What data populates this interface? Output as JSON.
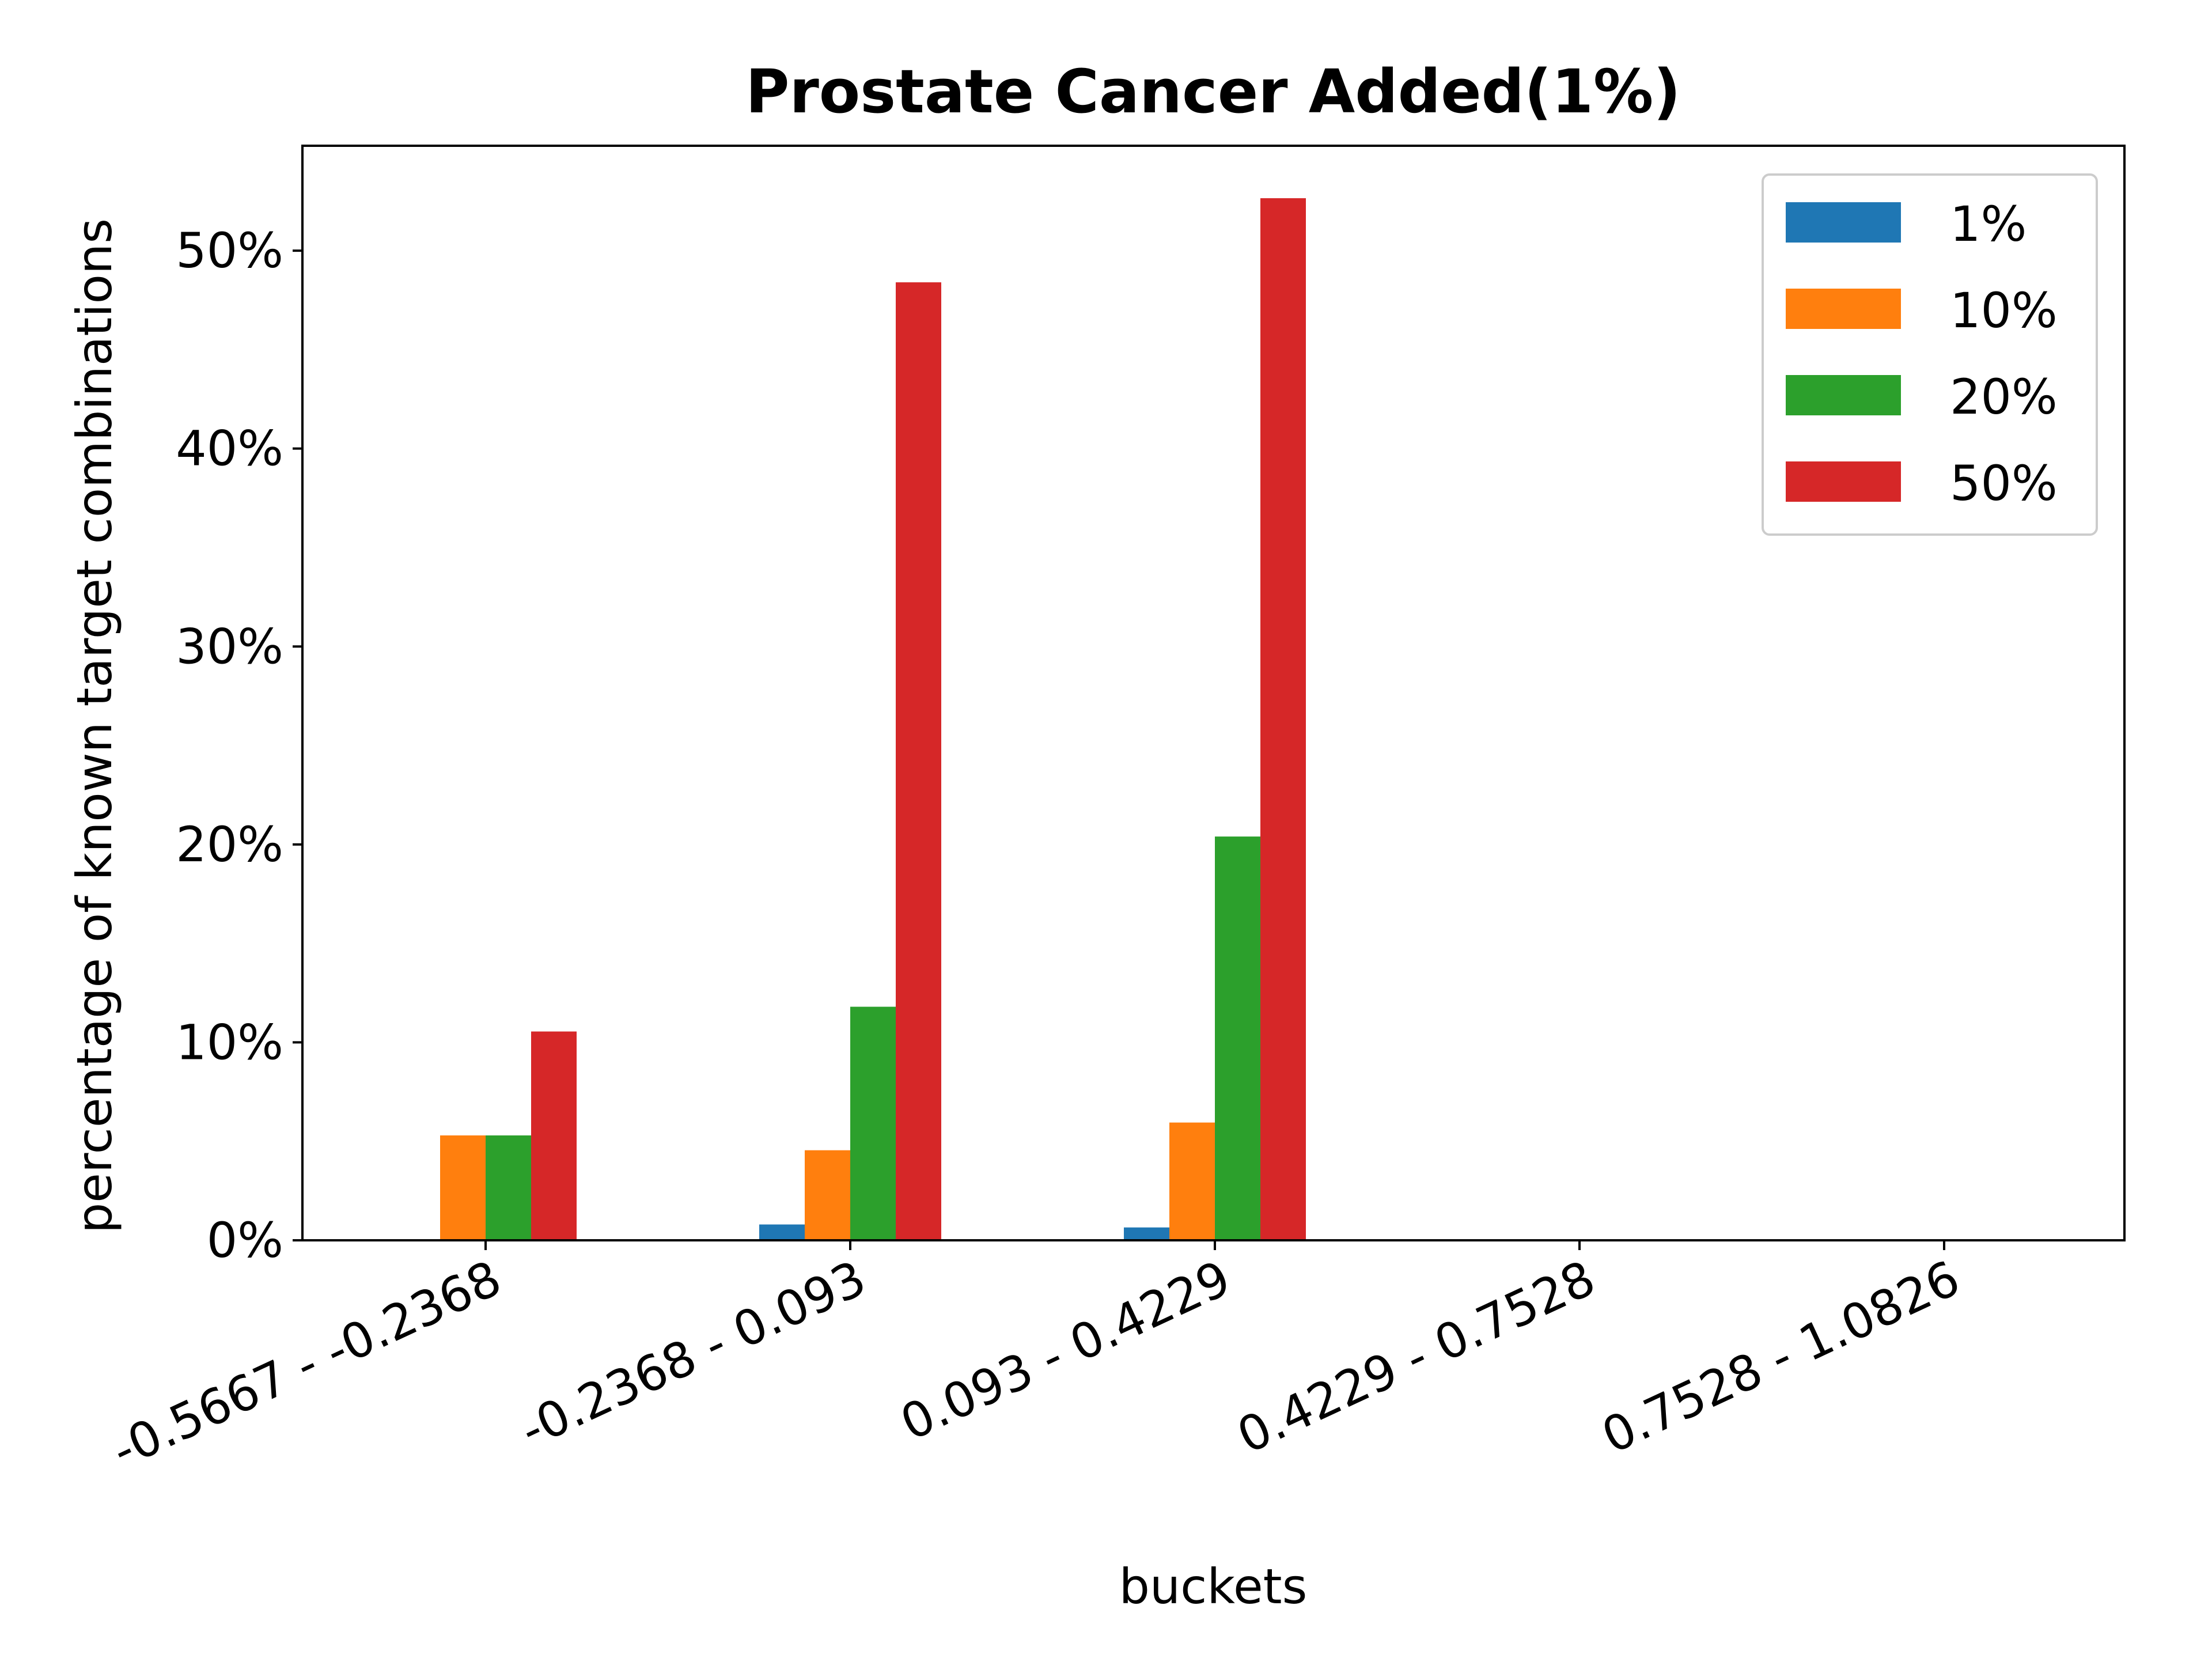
{
  "chart_data": {
    "type": "bar",
    "title": "Prostate Cancer Added(1%)",
    "xlabel": "buckets",
    "ylabel": "percentage of known target combinations",
    "categories": [
      "-0.5667 - -0.2368",
      "-0.2368 - 0.093",
      "0.093 - 0.4229",
      "0.4229 - 0.7528",
      "0.7528 - 1.0826"
    ],
    "series": [
      {
        "name": "1%",
        "color": "#1f77b4",
        "values": [
          0,
          0.8,
          0.65,
          0,
          0
        ]
      },
      {
        "name": "10%",
        "color": "#ff7f0e",
        "values": [
          5.3,
          4.55,
          5.95,
          0,
          0
        ]
      },
      {
        "name": "20%",
        "color": "#2ca02c",
        "values": [
          5.3,
          11.8,
          20.4,
          0,
          0
        ]
      },
      {
        "name": "50%",
        "color": "#d62728",
        "values": [
          10.55,
          48.4,
          52.65,
          0,
          0
        ]
      }
    ],
    "ylim": [
      0,
      55.3
    ],
    "yticks": [
      0,
      10,
      20,
      30,
      40,
      50
    ],
    "ytick_labels": [
      "0%",
      "10%",
      "20%",
      "30%",
      "40%",
      "50%"
    ],
    "grid": false,
    "legend_position": "top-right"
  }
}
